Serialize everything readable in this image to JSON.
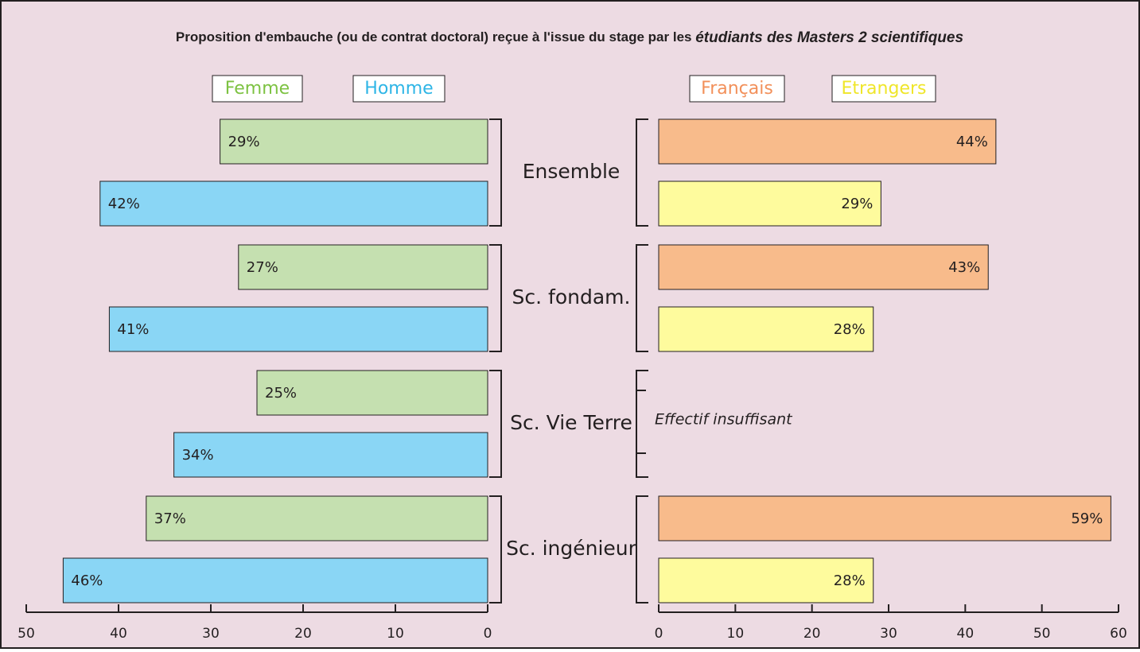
{
  "title": [
    "Proposition d'embauche (ou de contrat doctoral) reçue à l'issue du stage par les",
    "étudiants des Masters 2 scientifiques"
  ],
  "categories": [
    "Ensemble",
    "Sc. fondam.",
    "Sc. Vie Terre",
    "Sc. ingénieur"
  ],
  "chart_data": [
    {
      "type": "bar",
      "orientation": "horizontal",
      "x_reversed": true,
      "series": [
        {
          "name": "Femme",
          "color": "#c5e0b0",
          "legend_color": "#7dc242",
          "values": [
            29,
            27,
            25,
            37
          ],
          "value_labels": [
            "29%",
            "27%",
            "25%",
            "37%"
          ]
        },
        {
          "name": "Homme",
          "color": "#8ad6f5",
          "legend_color": "#2eb5e6",
          "values": [
            42,
            41,
            34,
            46
          ],
          "value_labels": [
            "42%",
            "41%",
            "34%",
            "46%"
          ]
        }
      ],
      "xlim": [
        0,
        50
      ],
      "xticks": [
        0,
        10,
        20,
        30,
        40,
        50
      ]
    },
    {
      "type": "bar",
      "orientation": "horizontal",
      "x_reversed": false,
      "series": [
        {
          "name": "Français",
          "color": "#f8bb8b",
          "legend_color": "#f2905a",
          "values": [
            44,
            43,
            null,
            59
          ],
          "value_labels": [
            "44%",
            "43%",
            null,
            "59%"
          ]
        },
        {
          "name": "Etrangers",
          "color": "#fefb9d",
          "legend_color": "#efe62a",
          "values": [
            29,
            28,
            null,
            28
          ],
          "value_labels": [
            "29%",
            "28%",
            null,
            "28%"
          ]
        }
      ],
      "annotation": "Effectif insuffisant",
      "xlim": [
        0,
        60
      ],
      "xticks": [
        0,
        10,
        20,
        30,
        40,
        50,
        60
      ]
    }
  ]
}
